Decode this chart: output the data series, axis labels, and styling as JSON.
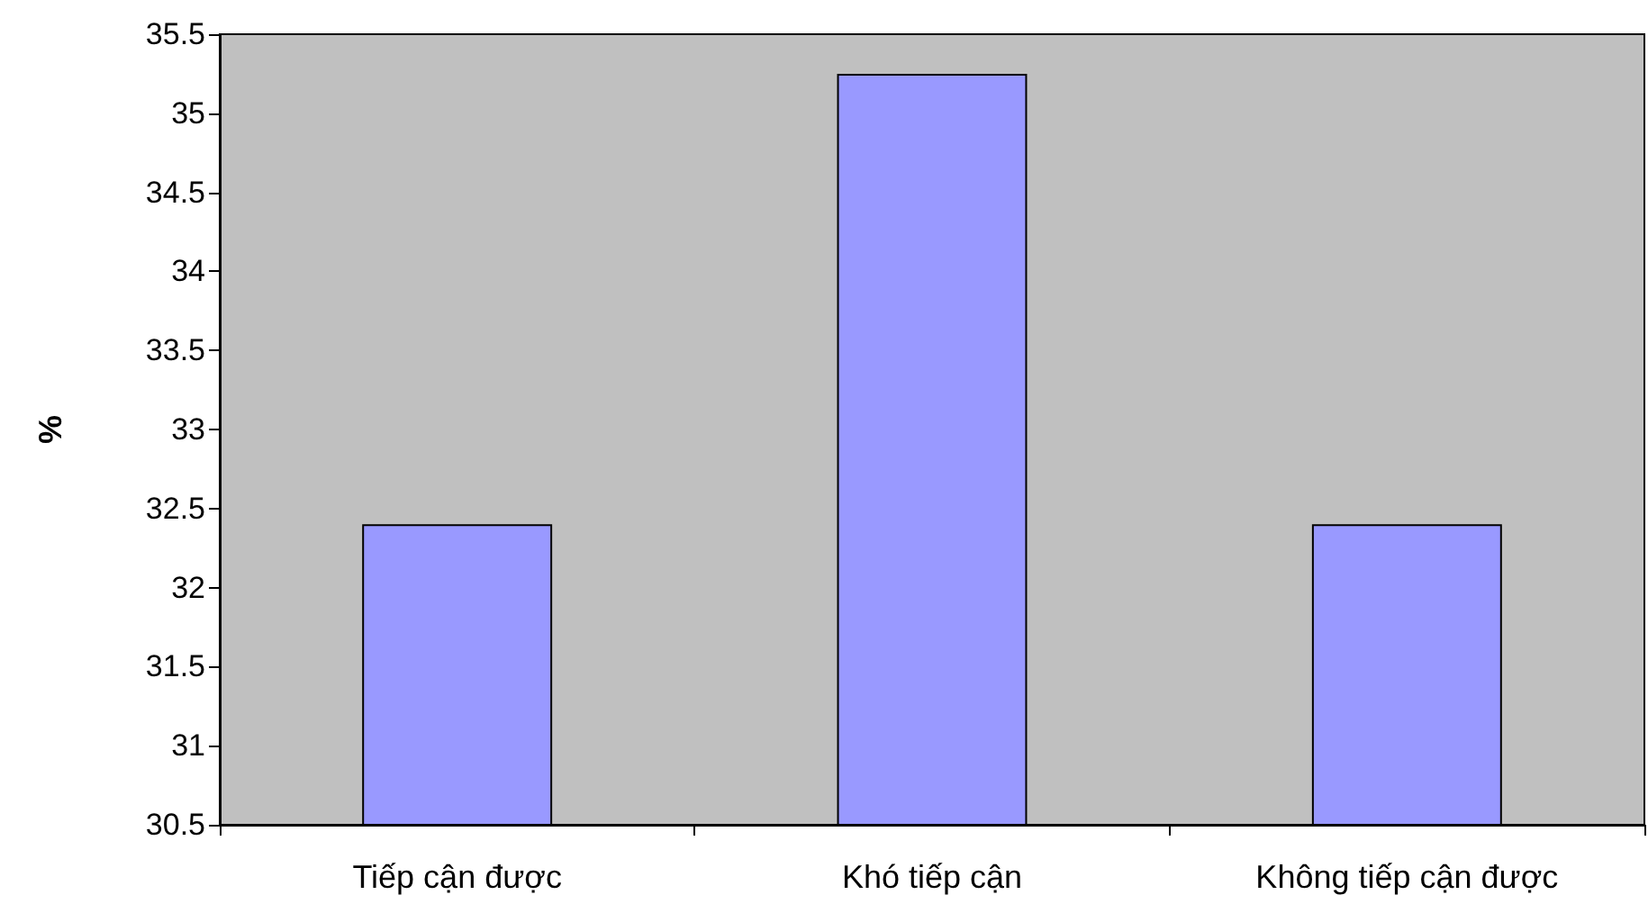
{
  "chart_data": {
    "type": "bar",
    "ylabel": "%",
    "categories": [
      "Tiếp cận được",
      "Khó tiếp cận",
      "Không tiếp cận được"
    ],
    "values": [
      32.4,
      35.25,
      32.4
    ],
    "color": "#9999ff",
    "ylim": [
      30.5,
      35.5
    ],
    "yticks": [
      30.5,
      31,
      31.5,
      32,
      32.5,
      33,
      33.5,
      34,
      34.5,
      35,
      35.5
    ],
    "grid": false
  }
}
